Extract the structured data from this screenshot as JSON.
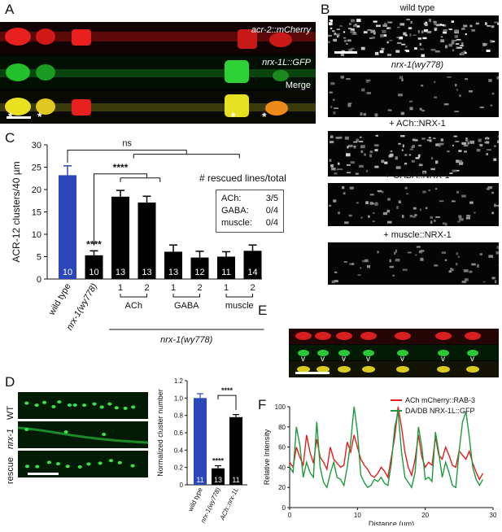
{
  "panels": {
    "A": {
      "letter": "A",
      "rows": [
        {
          "label": "acr-2::mCherry",
          "color": "#e02020"
        },
        {
          "label": "nrx-1L::GFP",
          "color": "#22b030"
        },
        {
          "label": "Merge",
          "color": "#d8d000"
        }
      ],
      "asterisk": "*"
    },
    "B": {
      "letter": "B",
      "conditions": [
        "wild type",
        "nrx-1(wy778)",
        "+ ACh::NRX-1",
        "+ GABA::NRX-1",
        "+ muscle::NRX-1"
      ],
      "intensity": [
        1.0,
        0.3,
        0.75,
        0.45,
        0.35
      ]
    },
    "C": {
      "letter": "C",
      "legend_title": "# rescued lines/total",
      "legend_rows": [
        {
          "name": "ACh:",
          "value": "3/5"
        },
        {
          "name": "GABA:",
          "value": "0/4"
        },
        {
          "name": "muscle:",
          "value": "0/4"
        }
      ],
      "group_labels": [
        "ACh",
        "GABA",
        "muscle"
      ],
      "genotype_label": "nrx-1(wy778)",
      "sig_ns": "ns",
      "sig_stars": "****"
    },
    "D": {
      "letter": "D",
      "row_labels": [
        "WT",
        "nrx-1",
        "rescue"
      ]
    },
    "E": {
      "letter": "E",
      "marker": "v"
    },
    "F": {
      "letter": "F",
      "legend": [
        {
          "name": "ACh mCherry::RAB-3",
          "color": "#e02020"
        },
        {
          "name": "DA/DB NRX-1L::GFP",
          "color": "#1e9a3c"
        }
      ]
    }
  },
  "chart_data": [
    {
      "panel": "C",
      "type": "bar",
      "categories": [
        "wild type",
        "nrx-1(wy778)",
        "1",
        "2",
        "1",
        "2",
        "1",
        "2"
      ],
      "values": [
        23.2,
        5.3,
        18.4,
        17.1,
        6.1,
        4.8,
        5.0,
        6.3
      ],
      "errors": [
        2.1,
        1.0,
        1.4,
        1.4,
        1.5,
        1.4,
        1.1,
        1.3
      ],
      "n": [
        "10",
        "10",
        "13",
        "13",
        "13",
        "12",
        "11",
        "14"
      ],
      "colors": [
        "#2a46b8",
        "#000000",
        "#000000",
        "#000000",
        "#000000",
        "#000000",
        "#000000",
        "#000000"
      ],
      "bar_annotation": {
        "index": 1,
        "text": "****"
      },
      "ylabel": "ACR-12 clusters/40 µm",
      "ylim": [
        0,
        30
      ],
      "yticks": [
        "0",
        "5",
        "10",
        "15",
        "20",
        "25",
        "30"
      ]
    },
    {
      "panel": "D",
      "type": "bar",
      "categories": [
        "wild type",
        "nrx-1(wy778)",
        "ACh::nrx-1L"
      ],
      "values": [
        1.0,
        0.19,
        0.78
      ],
      "errors": [
        0.05,
        0.03,
        0.03
      ],
      "n": [
        "11",
        "13",
        "11"
      ],
      "colors": [
        "#2a46b8",
        "#000000",
        "#000000"
      ],
      "bar_annotation": {
        "index": 1,
        "text": "****"
      },
      "sig_text": "****",
      "ylabel": "Normalized cluster number",
      "ylim": [
        0,
        1.2
      ],
      "yticks": [
        "0",
        "0.2",
        "0.4",
        "0.6",
        "0.8",
        "1.0",
        "1.2"
      ]
    },
    {
      "panel": "F",
      "type": "line",
      "xlabel": "Distance (µm)",
      "ylabel": "Relative Intensity",
      "xlim": [
        0,
        30
      ],
      "ylim": [
        0,
        100
      ],
      "xticks": [
        "0",
        "10",
        "20",
        "30"
      ],
      "yticks": [
        "0",
        "20",
        "40",
        "60",
        "80",
        "100"
      ],
      "series": [
        {
          "name": "ACh mCherry::RAB-3",
          "color": "#e02020",
          "x": [
            0,
            0.5,
            1,
            1.5,
            2,
            2.5,
            3,
            3.5,
            4,
            4.5,
            5,
            5.5,
            6,
            6.5,
            7,
            7.5,
            8,
            8.5,
            9,
            9.5,
            10,
            10.5,
            11,
            11.5,
            12,
            12.5,
            13,
            13.5,
            14,
            14.5,
            15,
            15.5,
            16,
            16.5,
            17,
            17.5,
            18,
            18.5,
            19,
            19.5,
            20,
            20.5,
            21,
            21.5,
            22,
            22.5,
            23,
            23.5,
            24,
            24.5,
            25,
            25.5,
            26,
            26.5,
            27,
            27.5,
            28,
            28.5
          ],
          "y": [
            45,
            40,
            60,
            50,
            42,
            72,
            55,
            44,
            68,
            50,
            45,
            38,
            60,
            48,
            44,
            40,
            42,
            65,
            55,
            72,
            60,
            48,
            42,
            38,
            32,
            30,
            34,
            40,
            36,
            30,
            50,
            70,
            100,
            80,
            55,
            40,
            32,
            48,
            72,
            50,
            40,
            45,
            42,
            70,
            52,
            48,
            60,
            52,
            42,
            40,
            56,
            52,
            48,
            56,
            44,
            35,
            28,
            34
          ]
        },
        {
          "name": "DA/DB NRX-1L::GFP",
          "color": "#1e9a3c",
          "x": [
            0,
            0.5,
            1,
            1.5,
            2,
            2.5,
            3,
            3.5,
            4,
            4.5,
            5,
            5.5,
            6,
            6.5,
            7,
            7.5,
            8,
            8.5,
            9,
            9.5,
            10,
            10.5,
            11,
            11.5,
            12,
            12.5,
            13,
            13.5,
            14,
            14.5,
            15,
            15.5,
            16,
            16.5,
            17,
            17.5,
            18,
            18.5,
            19,
            19.5,
            20,
            20.5,
            21,
            21.5,
            22,
            22.5,
            23,
            23.5,
            24,
            24.5,
            25,
            25.5,
            26,
            26.5,
            27,
            27.5,
            28,
            28.5
          ],
          "y": [
            40,
            35,
            80,
            62,
            30,
            45,
            35,
            30,
            85,
            40,
            25,
            20,
            34,
            45,
            30,
            28,
            22,
            40,
            65,
            100,
            75,
            32,
            25,
            20,
            22,
            28,
            26,
            30,
            24,
            22,
            44,
            80,
            95,
            55,
            30,
            25,
            20,
            35,
            80,
            60,
            28,
            30,
            26,
            75,
            55,
            30,
            45,
            35,
            22,
            20,
            56,
            85,
            95,
            70,
            40,
            28,
            22,
            28
          ]
        }
      ]
    }
  ]
}
